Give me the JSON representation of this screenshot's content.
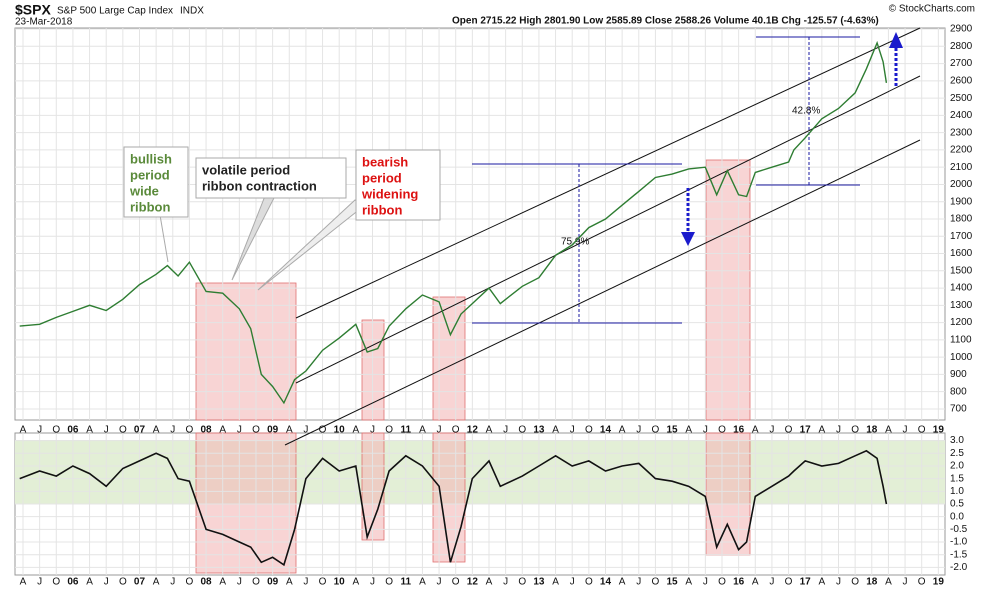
{
  "chart_data": {
    "type": "line",
    "symbol": "$SPX",
    "name": "S&P 500 Large Cap Index",
    "exchange": "INDX",
    "date": "23-Mar-2018",
    "quote": "Open 2715.22  High 2801.90  Low 2585.89  Close 2588.26  Volume 40.1B  Chg -125.57 (-4.63%)",
    "credit": "© StockCharts.com",
    "annotations": [
      {
        "lines": [
          "bullish",
          "period",
          "wide",
          "ribbon"
        ],
        "color": "#5a8a3a"
      },
      {
        "lines": [
          "volatile period",
          "ribbon contraction"
        ],
        "color": "#222222"
      },
      {
        "lines": [
          "bearish",
          "period",
          "widening",
          "ribbon"
        ],
        "color": "#dd1111"
      }
    ],
    "percent_labels": [
      "75.9%",
      "42.8%"
    ],
    "x": [
      2005.2,
      2005.5,
      2005.75,
      2006.0,
      2006.25,
      2006.5,
      2006.75,
      2007.0,
      2007.25,
      2007.42,
      2007.58,
      2007.75,
      2008.0,
      2008.25,
      2008.5,
      2008.67,
      2008.83,
      2009.0,
      2009.17,
      2009.33,
      2009.5,
      2009.75,
      2010.0,
      2010.25,
      2010.42,
      2010.58,
      2010.75,
      2011.0,
      2011.25,
      2011.5,
      2011.67,
      2011.83,
      2012.0,
      2012.25,
      2012.42,
      2012.75,
      2013.0,
      2013.25,
      2013.5,
      2013.75,
      2014.0,
      2014.25,
      2014.5,
      2014.75,
      2015.0,
      2015.25,
      2015.5,
      2015.67,
      2015.83,
      2016.0,
      2016.12,
      2016.25,
      2016.5,
      2016.75,
      2016.83,
      2017.0,
      2017.25,
      2017.5,
      2017.75,
      2017.92,
      2018.08,
      2018.17,
      2018.22
    ],
    "series": [
      {
        "color": "#2e7d32",
        "values": [
          1180,
          1190,
          1230,
          1265,
          1300,
          1270,
          1335,
          1420,
          1480,
          1530,
          1470,
          1550,
          1380,
          1370,
          1280,
          1165,
          900,
          830,
          735,
          870,
          920,
          1040,
          1110,
          1190,
          1030,
          1050,
          1180,
          1280,
          1360,
          1320,
          1130,
          1250,
          1310,
          1400,
          1310,
          1410,
          1460,
          1590,
          1650,
          1750,
          1800,
          1880,
          1960,
          2040,
          2060,
          2090,
          2100,
          1940,
          2080,
          1940,
          1930,
          2070,
          2100,
          2130,
          2200,
          2270,
          2380,
          2440,
          2530,
          2670,
          2820,
          2710,
          2588
        ]
      },
      {
        "color": "#111111",
        "axis": "lower",
        "values": [
          1.5,
          1.8,
          1.6,
          2.0,
          1.7,
          1.2,
          1.9,
          2.2,
          2.5,
          2.3,
          1.5,
          1.4,
          -0.5,
          -0.7,
          -1.0,
          -1.2,
          -1.8,
          -1.6,
          -1.9,
          -0.5,
          1.5,
          2.3,
          1.8,
          2.0,
          -0.8,
          0.3,
          1.8,
          2.4,
          2.0,
          1.2,
          -1.8,
          -0.4,
          1.5,
          2.2,
          1.2,
          1.6,
          2.0,
          2.4,
          2.0,
          2.2,
          1.8,
          2.0,
          2.1,
          1.5,
          1.4,
          1.2,
          0.8,
          -1.2,
          -0.3,
          -1.3,
          -1.0,
          0.8,
          1.2,
          1.6,
          1.8,
          2.2,
          2.0,
          2.1,
          2.4,
          2.6,
          2.3,
          1.2,
          0.5
        ]
      }
    ],
    "xlim": [
      2005.13,
      2019.1
    ],
    "ylim": [
      636,
      2906
    ],
    "yticks": [
      700,
      800,
      900,
      1000,
      1100,
      1200,
      1300,
      1400,
      1500,
      1600,
      1700,
      1800,
      1900,
      2000,
      2100,
      2200,
      2300,
      2400,
      2500,
      2600,
      2700,
      2800,
      2900
    ],
    "lower_ylim": [
      -2.3,
      3.3
    ],
    "lower_yticks": [
      {
        "value": 3,
        "label": "3.0"
      },
      {
        "value": 2.5,
        "label": "2.5"
      },
      {
        "value": 2,
        "label": "2.0"
      },
      {
        "value": 1.5,
        "label": "1.5"
      },
      {
        "value": 1,
        "label": "1.0"
      },
      {
        "value": 0.5,
        "label": "0.5"
      },
      {
        "value": 0,
        "label": "0.0"
      },
      {
        "value": -0.5,
        "label": "-0.5"
      },
      {
        "value": -1,
        "label": "-1.0"
      },
      {
        "value": -1.5,
        "label": "-1.5"
      },
      {
        "value": -2,
        "label": "-2.0"
      }
    ],
    "xticks": [
      {
        "value": 2005.25,
        "label": "A"
      },
      {
        "value": 2005.5,
        "label": "J"
      },
      {
        "value": 2005.75,
        "label": "O"
      },
      {
        "value": 2006,
        "label": "06"
      },
      {
        "value": 2006.25,
        "label": "A"
      },
      {
        "value": 2006.5,
        "label": "J"
      },
      {
        "value": 2006.75,
        "label": "O"
      },
      {
        "value": 2007,
        "label": "07"
      },
      {
        "value": 2007.25,
        "label": "A"
      },
      {
        "value": 2007.5,
        "label": "J"
      },
      {
        "value": 2007.75,
        "label": "O"
      },
      {
        "value": 2008,
        "label": "08"
      },
      {
        "value": 2008.25,
        "label": "A"
      },
      {
        "value": 2008.5,
        "label": "J"
      },
      {
        "value": 2008.75,
        "label": "O"
      },
      {
        "value": 2009,
        "label": "09"
      },
      {
        "value": 2009.25,
        "label": "A"
      },
      {
        "value": 2009.5,
        "label": "J"
      },
      {
        "value": 2009.75,
        "label": "O"
      },
      {
        "value": 2010,
        "label": "10"
      },
      {
        "value": 2010.25,
        "label": "A"
      },
      {
        "value": 2010.5,
        "label": "J"
      },
      {
        "value": 2010.75,
        "label": "O"
      },
      {
        "value": 2011,
        "label": "11"
      },
      {
        "value": 2011.25,
        "label": "A"
      },
      {
        "value": 2011.5,
        "label": "J"
      },
      {
        "value": 2011.75,
        "label": "O"
      },
      {
        "value": 2012,
        "label": "12"
      },
      {
        "value": 2012.25,
        "label": "A"
      },
      {
        "value": 2012.5,
        "label": "J"
      },
      {
        "value": 2012.75,
        "label": "O"
      },
      {
        "value": 2013,
        "label": "13"
      },
      {
        "value": 2013.25,
        "label": "A"
      },
      {
        "value": 2013.5,
        "label": "J"
      },
      {
        "value": 2013.75,
        "label": "O"
      },
      {
        "value": 2014,
        "label": "14"
      },
      {
        "value": 2014.25,
        "label": "A"
      },
      {
        "value": 2014.5,
        "label": "J"
      },
      {
        "value": 2014.75,
        "label": "O"
      },
      {
        "value": 2015,
        "label": "15"
      },
      {
        "value": 2015.25,
        "label": "A"
      },
      {
        "value": 2015.5,
        "label": "J"
      },
      {
        "value": 2015.75,
        "label": "O"
      },
      {
        "value": 2016,
        "label": "16"
      },
      {
        "value": 2016.25,
        "label": "A"
      },
      {
        "value": 2016.5,
        "label": "J"
      },
      {
        "value": 2016.75,
        "label": "O"
      },
      {
        "value": 2017,
        "label": "17"
      },
      {
        "value": 2017.25,
        "label": "A"
      },
      {
        "value": 2017.5,
        "label": "J"
      },
      {
        "value": 2017.75,
        "label": "O"
      },
      {
        "value": 2018,
        "label": "18"
      },
      {
        "value": 2018.25,
        "label": "A"
      },
      {
        "value": 2018.5,
        "label": "J"
      },
      {
        "value": 2018.75,
        "label": "O"
      },
      {
        "value": 2019,
        "label": "19"
      }
    ],
    "grid": true
  }
}
